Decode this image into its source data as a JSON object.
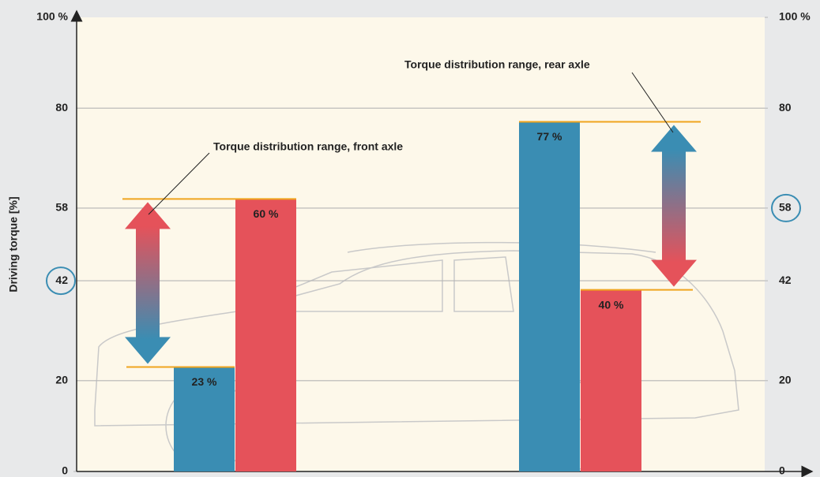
{
  "chart_data": {
    "type": "bar",
    "ylabel": "Driving torque [%]",
    "ylim": [
      0,
      100
    ],
    "yticks": [
      0,
      20,
      42,
      58,
      80,
      {
        "value": 100,
        "label": "100 %"
      }
    ],
    "y2lim": [
      0,
      100
    ],
    "y2ticks": [
      0,
      20,
      42,
      58,
      80,
      {
        "value": 100,
        "label": "100 %"
      }
    ],
    "yticks_circled": [
      42
    ],
    "y2ticks_circled": [
      58
    ],
    "grid": true,
    "categories": [
      null,
      null
    ],
    "annotations": [
      "Torque distribution range, front axle",
      "Torque distribution range, rear axle"
    ],
    "series": [
      {
        "color": "#3a8db3",
        "values": [
          23,
          77
        ],
        "value_labels": [
          "23 %",
          "77 %"
        ]
      },
      {
        "color": "#e5525a",
        "values": [
          60,
          40
        ],
        "value_labels": [
          "60 %",
          "40 %"
        ]
      }
    ],
    "range_color": "#f0a51e"
  }
}
